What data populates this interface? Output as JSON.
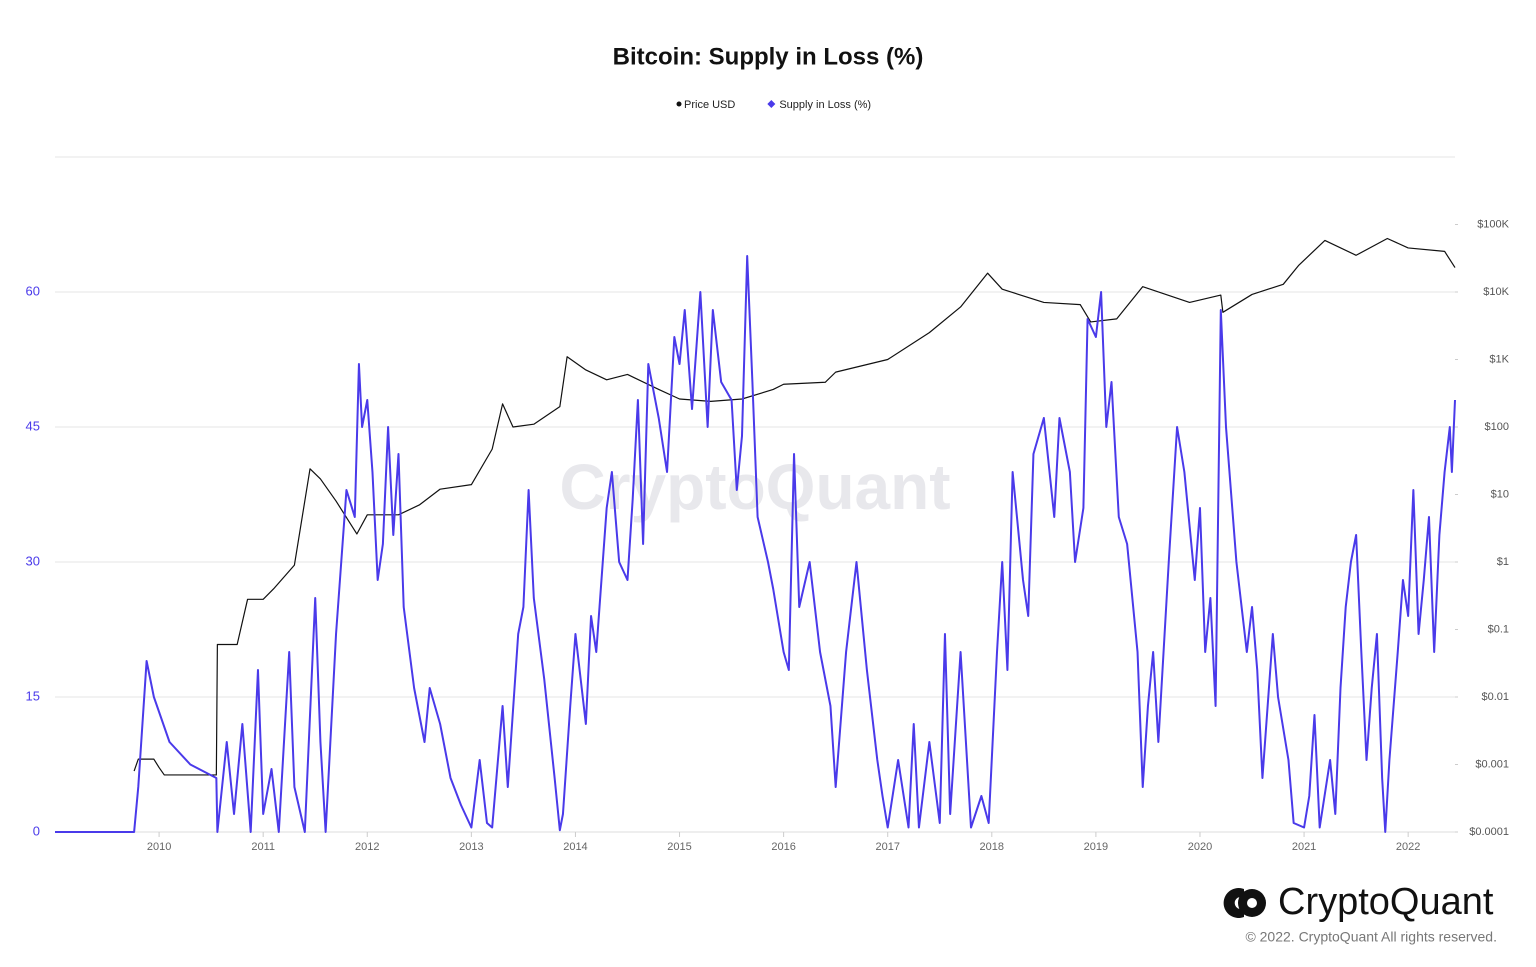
{
  "chart_data": {
    "type": "line",
    "title": "Bitcoin: Supply in Loss (%)",
    "watermark": "CryptoQuant",
    "brand": "CryptoQuant",
    "copyright": "© 2022. CryptoQuant All rights reserved.",
    "grid": true,
    "legend": "top",
    "xlim": [
      2009.0,
      2022.45
    ],
    "xticks": [
      2010,
      2011,
      2012,
      2013,
      2014,
      2015,
      2016,
      2017,
      2018,
      2019,
      2020,
      2021,
      2022
    ],
    "ylim": [
      0,
      75
    ],
    "yticks": [
      0,
      15,
      30,
      45,
      60
    ],
    "y2log": true,
    "y2lim": [
      0.0001,
      1000000
    ],
    "y2ticks": [
      {
        "value": 0.0001,
        "label": "$0.0001"
      },
      {
        "value": 0.001,
        "label": "$0.001"
      },
      {
        "value": 0.01,
        "label": "$0.01"
      },
      {
        "value": 0.1,
        "label": "$0.1"
      },
      {
        "value": 1,
        "label": "$1"
      },
      {
        "value": 10,
        "label": "$10"
      },
      {
        "value": 100,
        "label": "$100"
      },
      {
        "value": 1000,
        "label": "$1K"
      },
      {
        "value": 10000,
        "label": "$10K"
      },
      {
        "value": 100000,
        "label": "$100K"
      }
    ],
    "series": [
      {
        "name": "Price USD",
        "color": "#111111",
        "axis": "y2",
        "marker": "circle",
        "x": [
          2009.76,
          2009.8,
          2009.95,
          2010.0,
          2010.05,
          2010.55,
          2010.56,
          2010.75,
          2010.85,
          2011.0,
          2011.1,
          2011.3,
          2011.45,
          2011.55,
          2011.7,
          2011.9,
          2012.0,
          2012.3,
          2012.5,
          2012.7,
          2013.0,
          2013.2,
          2013.3,
          2013.4,
          2013.6,
          2013.85,
          2013.92,
          2014.1,
          2014.3,
          2014.5,
          2014.8,
          2015.0,
          2015.3,
          2015.6,
          2015.9,
          2016.0,
          2016.4,
          2016.5,
          2017.0,
          2017.4,
          2017.7,
          2017.96,
          2018.1,
          2018.5,
          2018.85,
          2018.95,
          2019.2,
          2019.45,
          2019.9,
          2020.2,
          2020.22,
          2020.5,
          2020.8,
          2020.95,
          2021.2,
          2021.5,
          2021.8,
          2022.0,
          2022.35,
          2022.45
        ],
        "values": [
          0.0008,
          0.0012,
          0.0012,
          0.0009,
          0.0007,
          0.0007,
          0.06,
          0.06,
          0.28,
          0.28,
          0.4,
          0.9,
          24,
          17,
          8,
          2.6,
          5,
          5,
          7,
          12,
          14,
          47,
          220,
          100,
          110,
          200,
          1100,
          700,
          500,
          600,
          360,
          260,
          240,
          260,
          360,
          430,
          460,
          650,
          1000,
          2500,
          6000,
          19000,
          11000,
          7000,
          6500,
          3600,
          4000,
          12000,
          7000,
          9000,
          5000,
          9200,
          13000,
          25000,
          58000,
          35000,
          62000,
          45000,
          40000,
          23000
        ]
      },
      {
        "name": "Supply in Loss (%)",
        "color": "#4a3aea",
        "axis": "y",
        "marker": "diamond",
        "x": [
          2009.0,
          2009.76,
          2009.8,
          2009.88,
          2009.95,
          2010.1,
          2010.3,
          2010.55,
          2010.56,
          2010.65,
          2010.72,
          2010.8,
          2010.88,
          2010.95,
          2011.0,
          2011.08,
          2011.15,
          2011.25,
          2011.3,
          2011.4,
          2011.5,
          2011.55,
          2011.6,
          2011.7,
          2011.8,
          2011.88,
          2011.92,
          2011.95,
          2012.0,
          2012.05,
          2012.1,
          2012.15,
          2012.2,
          2012.25,
          2012.3,
          2012.35,
          2012.45,
          2012.55,
          2012.6,
          2012.7,
          2012.8,
          2012.9,
          2013.0,
          2013.08,
          2013.15,
          2013.2,
          2013.3,
          2013.35,
          2013.45,
          2013.5,
          2013.55,
          2013.6,
          2013.7,
          2013.8,
          2013.85,
          2013.88,
          2013.95,
          2014.0,
          2014.1,
          2014.15,
          2014.2,
          2014.3,
          2014.35,
          2014.42,
          2014.5,
          2014.55,
          2014.6,
          2014.65,
          2014.7,
          2014.8,
          2014.88,
          2014.95,
          2015.0,
          2015.05,
          2015.12,
          2015.2,
          2015.27,
          2015.32,
          2015.4,
          2015.5,
          2015.55,
          2015.6,
          2015.65,
          2015.7,
          2015.75,
          2015.85,
          2015.9,
          2016.0,
          2016.05,
          2016.1,
          2016.15,
          2016.25,
          2016.35,
          2016.45,
          2016.5,
          2016.6,
          2016.7,
          2016.8,
          2016.9,
          2016.95,
          2017.0,
          2017.1,
          2017.2,
          2017.25,
          2017.3,
          2017.4,
          2017.5,
          2017.55,
          2017.6,
          2017.7,
          2017.8,
          2017.9,
          2017.97,
          2018.05,
          2018.1,
          2018.15,
          2018.2,
          2018.3,
          2018.35,
          2018.4,
          2018.5,
          2018.6,
          2018.65,
          2018.75,
          2018.8,
          2018.88,
          2018.92,
          2019.0,
          2019.05,
          2019.1,
          2019.15,
          2019.22,
          2019.3,
          2019.4,
          2019.45,
          2019.5,
          2019.55,
          2019.6,
          2019.7,
          2019.78,
          2019.85,
          2019.95,
          2020.0,
          2020.05,
          2020.1,
          2020.15,
          2020.2,
          2020.25,
          2020.35,
          2020.45,
          2020.5,
          2020.55,
          2020.6,
          2020.7,
          2020.75,
          2020.85,
          2020.9,
          2021.0,
          2021.05,
          2021.1,
          2021.15,
          2021.25,
          2021.3,
          2021.35,
          2021.4,
          2021.45,
          2021.5,
          2021.55,
          2021.6,
          2021.65,
          2021.7,
          2021.75,
          2021.78,
          2021.82,
          2021.9,
          2021.95,
          2022.0,
          2022.05,
          2022.1,
          2022.15,
          2022.2,
          2022.25,
          2022.3,
          2022.35,
          2022.4,
          2022.42,
          2022.45
        ],
        "values": [
          0,
          0,
          5,
          19,
          15,
          10,
          7.5,
          6,
          0,
          10,
          2,
          12,
          0,
          18,
          2,
          7,
          0,
          20,
          5,
          0,
          26,
          10,
          0,
          22,
          38,
          35,
          52,
          45,
          48,
          40,
          28,
          32,
          45,
          33,
          42,
          25,
          16,
          10,
          16,
          12,
          6,
          3,
          0.5,
          8,
          1,
          0.5,
          14,
          5,
          22,
          25,
          38,
          26,
          17,
          6,
          0.2,
          2,
          14,
          22,
          12,
          24,
          20,
          36,
          40,
          30,
          28,
          37,
          48,
          32,
          52,
          46,
          40,
          55,
          52,
          58,
          47,
          60,
          45,
          58,
          50,
          48,
          38,
          44,
          64,
          50,
          35,
          30,
          27,
          20,
          18,
          42,
          25,
          30,
          20,
          14,
          5,
          20,
          30,
          18,
          8,
          4,
          0.5,
          8,
          0.5,
          12,
          0.5,
          10,
          1,
          22,
          2,
          20,
          0.5,
          4,
          1,
          20,
          30,
          18,
          40,
          28,
          24,
          42,
          46,
          35,
          46,
          40,
          30,
          36,
          57,
          55,
          60,
          45,
          50,
          35,
          32,
          20,
          5,
          14,
          20,
          10,
          30,
          45,
          40,
          28,
          36,
          20,
          26,
          14,
          58,
          45,
          30,
          20,
          25,
          18,
          6,
          22,
          15,
          8,
          1,
          0.5,
          4,
          13,
          0.5,
          8,
          2,
          16,
          25,
          30,
          33,
          20,
          8,
          16,
          22,
          6,
          0,
          8,
          20,
          28,
          24,
          38,
          22,
          28,
          35,
          20,
          33,
          40,
          45,
          40,
          48
        ]
      }
    ]
  }
}
